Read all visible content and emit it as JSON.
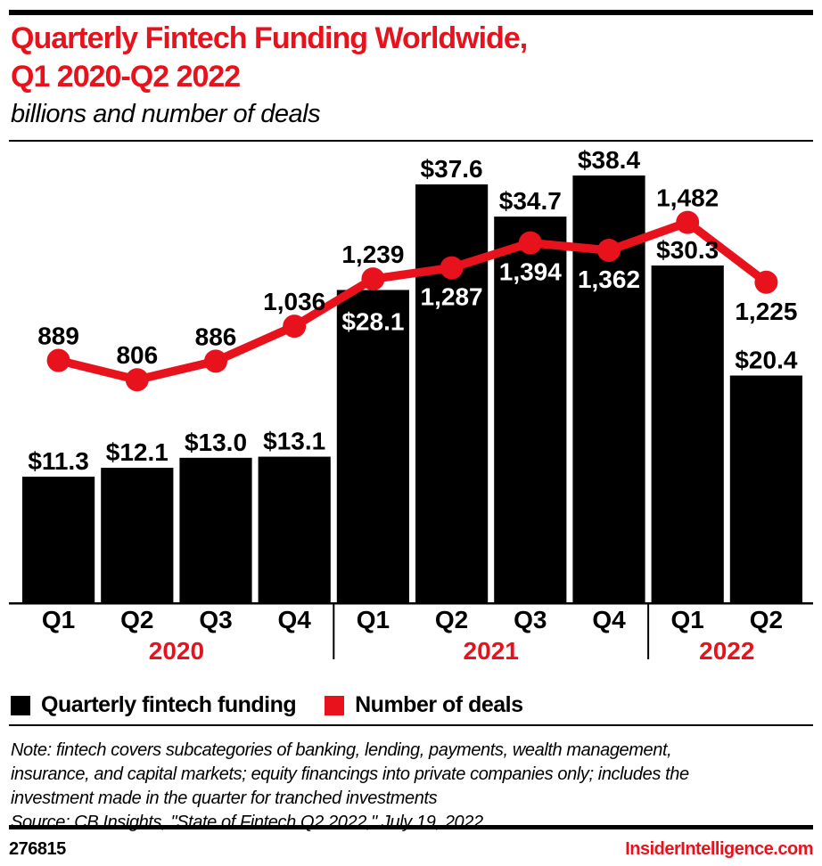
{
  "header": {
    "title_line1": "Quarterly Fintech Funding Worldwide,",
    "title_line2": "Q1 2020-Q2 2022",
    "subtitle": "billions and number of deals"
  },
  "legend": [
    {
      "label": "Quarterly fintech funding",
      "color": "#000000"
    },
    {
      "label": "Number of deals",
      "color": "#e8121d"
    }
  ],
  "notes": {
    "note_line1": "Note: fintech covers subcategories of banking, lending, payments, wealth management,",
    "note_line2": "insurance, and capital markets; equity financings into private companies only; includes the",
    "note_line3": "investment made in the quarter for tranched investments",
    "source_line": "Source: CB Insights, \"State of Fintech Q2 2022,\" July 19, 2022"
  },
  "footer": {
    "chart_id": "276815",
    "brand": "InsiderIntelligence.com"
  },
  "colors": {
    "accent_red": "#e8121d",
    "bar_black": "#000000",
    "white": "#ffffff"
  },
  "chart_data": {
    "type": "bar",
    "subtype": "bar+line combo",
    "title": "Quarterly Fintech Funding Worldwide, Q1 2020-Q2 2022",
    "subtitle": "billions and number of deals",
    "categories": [
      "Q1",
      "Q2",
      "Q3",
      "Q4",
      "Q1",
      "Q2",
      "Q3",
      "Q4",
      "Q1",
      "Q2"
    ],
    "year_groups": [
      {
        "label": "2020",
        "start": 0,
        "end": 3
      },
      {
        "label": "2021",
        "start": 4,
        "end": 7
      },
      {
        "label": "2022",
        "start": 8,
        "end": 9
      }
    ],
    "series": [
      {
        "name": "Quarterly fintech funding",
        "type": "bar",
        "unit": "USD billions",
        "values": [
          11.3,
          12.1,
          13.0,
          13.1,
          28.1,
          37.6,
          34.7,
          38.4,
          30.3,
          20.4
        ],
        "labels": [
          "$11.3",
          "$12.1",
          "$13.0",
          "$13.1",
          "$28.1",
          "$37.6",
          "$34.7",
          "$38.4",
          "$30.3",
          "$20.4"
        ]
      },
      {
        "name": "Number of deals",
        "type": "line",
        "unit": "deals",
        "values": [
          889,
          806,
          886,
          1036,
          1239,
          1287,
          1394,
          1362,
          1482,
          1225
        ],
        "labels": [
          "889",
          "806",
          "886",
          "1,036",
          "1,239",
          "1,287",
          "1,394",
          "1,362",
          "1,482",
          "1,225"
        ]
      }
    ],
    "ylim": [
      0,
      40
    ],
    "y2lim": [
      -150,
      1760
    ],
    "grid": "off",
    "legend_position": "bottom",
    "layout": {
      "bar_label_styles": [
        "above",
        "above",
        "above",
        "above",
        "inside",
        "above",
        "above",
        "above",
        "above",
        "above"
      ],
      "line_label_positions": [
        "above",
        "above",
        "above",
        "above",
        "above",
        "below",
        "below",
        "below",
        "above",
        "below"
      ],
      "line_label_colors": [
        "#000000",
        "#000000",
        "#000000",
        "#000000",
        "#000000",
        "#ffffff",
        "#ffffff",
        "#ffffff",
        "#000000",
        "#000000"
      ]
    }
  }
}
